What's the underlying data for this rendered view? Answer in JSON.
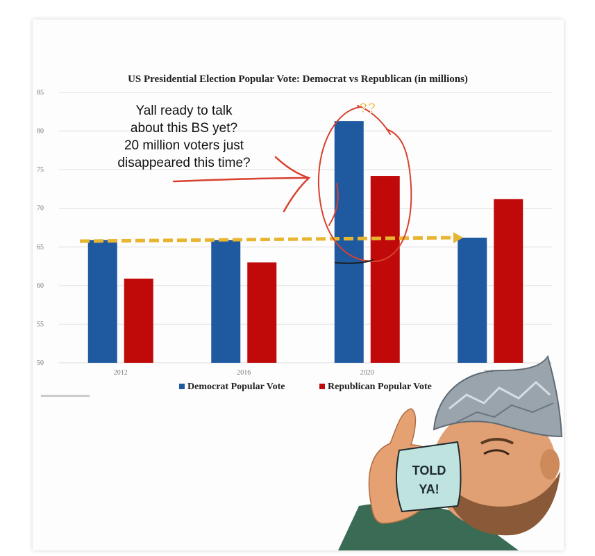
{
  "chart_data": {
    "type": "bar",
    "title": "US Presidential Election Popular Vote: Democrat vs Republican (in millions)",
    "xlabel": "",
    "ylabel": "",
    "categories": [
      "2012",
      "2016",
      "2020",
      "2024"
    ],
    "series": [
      {
        "name": "Democrat Popular Vote",
        "values": [
          65.9,
          65.9,
          81.3,
          66.2
        ],
        "color": "#1f5aa0"
      },
      {
        "name": "Republican Popular Vote",
        "values": [
          60.9,
          63.0,
          74.2,
          71.2
        ],
        "color": "#c00a0a"
      }
    ],
    "ylim": [
      50,
      85
    ],
    "yticks": [
      50,
      55,
      60,
      65,
      70,
      75,
      80,
      85
    ],
    "grid": true,
    "legend": "bottom-center"
  },
  "annotation": {
    "lines": [
      "Yall ready to talk",
      "about this BS yet?",
      "20 million voters just",
      "disappeared this time?"
    ],
    "question_marks": "??"
  },
  "meme": {
    "mug_text_line1": "TOLD",
    "mug_text_line2": "YA!"
  },
  "colors": {
    "trend_arrow": "#e8b531",
    "scribble": "#d8402e",
    "grid": "#dddddd"
  }
}
